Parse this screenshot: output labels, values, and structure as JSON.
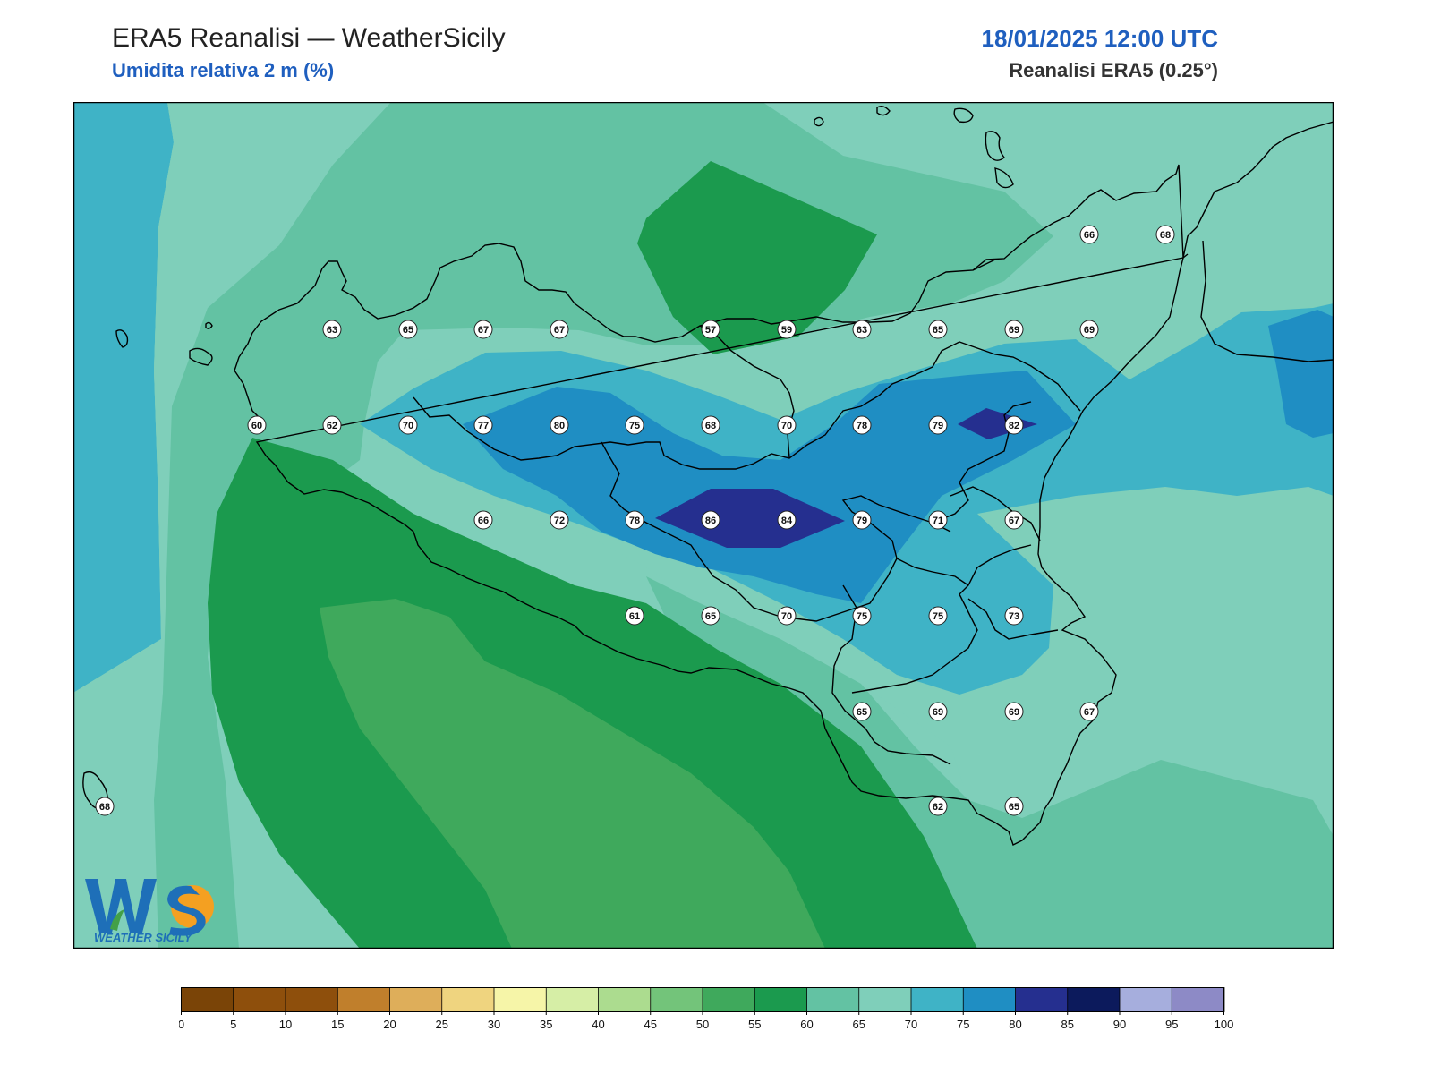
{
  "header": {
    "title": "ERA5 Reanalisi — WeatherSicily",
    "subtitle": "Umidita relativa 2 m (%)",
    "datetime": "18/01/2025 12:00 UTC",
    "source": "Reanalisi ERA5 (0.25°)"
  },
  "map": {
    "variable": "relative humidity 2 m",
    "station_values": [
      {
        "value": 63
      },
      {
        "value": 65
      },
      {
        "value": 67
      },
      {
        "value": 67
      },
      {
        "value": 57
      },
      {
        "value": 59
      },
      {
        "value": 63
      },
      {
        "value": 65
      },
      {
        "value": 69
      },
      {
        "value": 69
      },
      {
        "value": 66
      },
      {
        "value": 68
      },
      {
        "value": 60
      },
      {
        "value": 62
      },
      {
        "value": 70
      },
      {
        "value": 77
      },
      {
        "value": 80
      },
      {
        "value": 75
      },
      {
        "value": 68
      },
      {
        "value": 70
      },
      {
        "value": 78
      },
      {
        "value": 79
      },
      {
        "value": 82
      },
      {
        "value": 66
      },
      {
        "value": 72
      },
      {
        "value": 78
      },
      {
        "value": 86
      },
      {
        "value": 84
      },
      {
        "value": 79
      },
      {
        "value": 71
      },
      {
        "value": 67
      },
      {
        "value": 61
      },
      {
        "value": 65
      },
      {
        "value": 70
      },
      {
        "value": 75
      },
      {
        "value": 75
      },
      {
        "value": 73
      },
      {
        "value": 65
      },
      {
        "value": 69
      },
      {
        "value": 69
      },
      {
        "value": 67
      },
      {
        "value": 68
      },
      {
        "value": 62
      },
      {
        "value": 65
      }
    ]
  },
  "colorbar": {
    "ticks": [
      "0",
      "5",
      "10",
      "15",
      "20",
      "25",
      "30",
      "35",
      "40",
      "45",
      "50",
      "55",
      "60",
      "65",
      "70",
      "75",
      "80",
      "85",
      "90",
      "95",
      "100"
    ],
    "colors": [
      "#7a4407",
      "#8e4f0c",
      "#8e4f0c",
      "#c07f2c",
      "#deae5a",
      "#efd47f",
      "#f6f5a8",
      "#d6eea6",
      "#acdc8f",
      "#73c47a",
      "#3fa95c",
      "#1b9a4e",
      "#63c2a3",
      "#7fcfba",
      "#3fb3c6",
      "#1f8ec3",
      "#252f8f",
      "#0c1a5c",
      "#a6aedd",
      "#8d8ac6"
    ]
  },
  "logo": {
    "letters": "WS",
    "name": "WEATHER SICILY"
  }
}
